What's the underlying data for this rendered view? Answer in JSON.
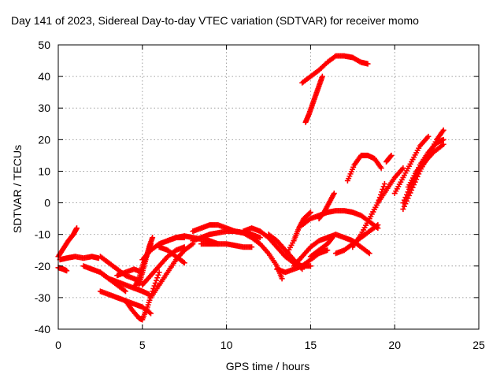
{
  "chart_data": {
    "type": "scatter",
    "title": "Day 141 of 2023, Sidereal Day-to-day VTEC variation (SDTVAR) for receiver momo",
    "xlabel": "GPS time / hours",
    "ylabel": "SDTVAR / TECUs",
    "xlim": [
      0,
      25
    ],
    "ylim": [
      -40,
      50
    ],
    "xticks": [
      0,
      5,
      10,
      15,
      20,
      25
    ],
    "yticks": [
      -40,
      -30,
      -20,
      -10,
      0,
      10,
      20,
      30,
      40,
      50
    ],
    "grid": true,
    "marker": "+",
    "color": "#ff0000",
    "series": [
      {
        "x": [
          0.0,
          0.3,
          0.6,
          0.9,
          1.1
        ],
        "y": [
          -17,
          -14.5,
          -12,
          -10,
          -8
        ]
      },
      {
        "x": [
          0.0,
          0.3,
          0.5
        ],
        "y": [
          -20.5,
          -21,
          -21.5
        ]
      },
      {
        "x": [
          0.1,
          0.5,
          1.0,
          1.5,
          2.0,
          2.4
        ],
        "y": [
          -18,
          -17.5,
          -17,
          -17.5,
          -17,
          -17.5
        ]
      },
      {
        "x": [
          1.5,
          2.0,
          2.5,
          3.0,
          3.5,
          4.0
        ],
        "y": [
          -20,
          -21,
          -22,
          -24,
          -26,
          -28
        ]
      },
      {
        "x": [
          2.5,
          3.0,
          3.5,
          4.0,
          4.5,
          5.0,
          5.5
        ],
        "y": [
          -28,
          -29,
          -30,
          -31,
          -32,
          -33,
          -35
        ]
      },
      {
        "x": [
          2.5,
          3.0,
          3.5,
          4.0,
          4.5,
          4.9
        ],
        "y": [
          -17,
          -19,
          -21,
          -23,
          -24,
          -25
        ]
      },
      {
        "x": [
          2.5,
          3.0,
          3.5,
          4.0,
          4.5,
          5.0,
          5.4
        ],
        "y": [
          -22,
          -24,
          -25,
          -26,
          -27,
          -28,
          -29
        ]
      },
      {
        "x": [
          3.5,
          4.0,
          4.5,
          5.0
        ],
        "y": [
          -23,
          -22,
          -21,
          -22
        ]
      },
      {
        "x": [
          4.0,
          4.4,
          4.8,
          5.0,
          5.3,
          5.6,
          6.0
        ],
        "y": [
          -31,
          -34,
          -36.5,
          -37,
          -33,
          -28,
          -22
        ]
      },
      {
        "x": [
          4.5,
          4.8,
          5.0,
          5.3,
          5.5
        ],
        "y": [
          -27,
          -24,
          -20,
          -16,
          -13
        ]
      },
      {
        "x": [
          4.8,
          5.0,
          5.2,
          5.4,
          5.6
        ],
        "y": [
          -26,
          -22,
          -18,
          -14,
          -11
        ]
      },
      {
        "x": [
          5.0,
          5.5,
          6.0,
          6.5,
          7.0,
          7.5
        ],
        "y": [
          -26,
          -23,
          -20,
          -17,
          -15,
          -14
        ]
      },
      {
        "x": [
          5.5,
          6.0,
          6.5,
          7.0,
          7.5,
          8.0
        ],
        "y": [
          -30,
          -26,
          -22,
          -18,
          -15,
          -13
        ]
      },
      {
        "x": [
          5.0,
          5.5,
          6.0,
          6.5,
          7.0,
          7.5
        ],
        "y": [
          -18,
          -15,
          -13,
          -12,
          -11,
          -11
        ]
      },
      {
        "x": [
          6.5,
          7.0,
          7.5,
          8.0,
          8.5,
          9.0,
          9.5
        ],
        "y": [
          -12,
          -11,
          -10.5,
          -11,
          -11.5,
          -12,
          -13
        ]
      },
      {
        "x": [
          6.0,
          6.5,
          7.0,
          7.5
        ],
        "y": [
          -14,
          -15,
          -17,
          -19
        ]
      },
      {
        "x": [
          8.0,
          8.5,
          9.0,
          9.5,
          10.0,
          10.5,
          11.0,
          11.5
        ],
        "y": [
          -9,
          -8,
          -7,
          -7,
          -8,
          -9,
          -9.5,
          -10
        ]
      },
      {
        "x": [
          8.0,
          8.5,
          9.0,
          9.5,
          10.0,
          10.5,
          11.0,
          11.5,
          12.0
        ],
        "y": [
          -12,
          -11,
          -10,
          -9.5,
          -9,
          -9,
          -9.5,
          -10,
          -11
        ]
      },
      {
        "x": [
          8.5,
          9.0,
          9.5,
          10.0,
          10.5,
          11.0,
          11.5
        ],
        "y": [
          -13,
          -13,
          -13,
          -13,
          -13.5,
          -14,
          -14
        ]
      },
      {
        "x": [
          10.5,
          11.0,
          11.5,
          12.0,
          12.5,
          13.0,
          13.3
        ],
        "y": [
          -9,
          -9.5,
          -11,
          -13,
          -16,
          -20,
          -24
        ]
      },
      {
        "x": [
          11.0,
          11.5,
          12.0,
          12.5,
          13.0,
          13.5,
          14.0,
          14.5,
          15.0
        ],
        "y": [
          -9,
          -8,
          -9,
          -11,
          -14,
          -17,
          -19,
          -20,
          -20
        ]
      },
      {
        "x": [
          12.5,
          13.0,
          13.5,
          14.0,
          14.5
        ],
        "y": [
          -10,
          -12,
          -15,
          -18,
          -21
        ]
      },
      {
        "x": [
          13.0,
          13.5,
          14.0,
          14.5,
          15.0,
          15.5,
          16.0
        ],
        "y": [
          -21,
          -22,
          -21,
          -20,
          -18,
          -16,
          -15
        ]
      },
      {
        "x": [
          13.5,
          14.0,
          14.3,
          14.6,
          15.0
        ],
        "y": [
          -17,
          -12,
          -8,
          -5,
          -3
        ]
      },
      {
        "x": [
          14.0,
          14.5,
          15.0,
          15.5,
          16.0,
          16.5,
          17.0,
          17.5,
          18.0,
          18.5
        ],
        "y": [
          -20,
          -17,
          -14,
          -12,
          -11,
          -10,
          -11,
          -12,
          -14,
          -16
        ]
      },
      {
        "x": [
          14.5,
          15.0,
          15.5,
          16.0,
          16.5,
          17.0,
          17.5,
          18.0,
          18.5,
          19.0
        ],
        "y": [
          -7,
          -5,
          -4,
          -3,
          -2.5,
          -2.5,
          -3,
          -4,
          -6,
          -8
        ]
      },
      {
        "x": [
          15.0,
          15.5,
          16.0,
          16.3
        ],
        "y": [
          -17,
          -15,
          -13,
          -11
        ]
      },
      {
        "x": [
          15.5,
          15.8,
          16.1,
          16.4
        ],
        "y": [
          -5,
          -3,
          0,
          3
        ]
      },
      {
        "x": [
          14.7,
          14.9,
          15.1,
          15.3,
          15.5,
          15.7
        ],
        "y": [
          25.5,
          28,
          31,
          34,
          37,
          40
        ]
      },
      {
        "x": [
          14.5,
          15.0,
          15.5,
          16.0,
          16.5,
          17.0,
          17.5,
          18.0,
          18.4
        ],
        "y": [
          38,
          40,
          42,
          44.5,
          46.5,
          46.5,
          46,
          44.5,
          44
        ]
      },
      {
        "x": [
          16.5,
          17.0,
          17.5,
          18.0,
          18.5,
          19.0
        ],
        "y": [
          -16,
          -15,
          -13,
          -11,
          -9,
          -7
        ]
      },
      {
        "x": [
          17.2,
          17.6,
          18.0,
          18.4,
          18.8,
          19.2
        ],
        "y": [
          7,
          12,
          15,
          15,
          14,
          11
        ]
      },
      {
        "x": [
          17.5,
          18.0,
          18.5,
          19.0,
          19.4
        ],
        "y": [
          -14,
          -10,
          -5,
          0,
          6
        ]
      },
      {
        "x": [
          18.5,
          19.0,
          19.5,
          20.0,
          20.5
        ],
        "y": [
          -5,
          0,
          4,
          8,
          11
        ]
      },
      {
        "x": [
          19.5,
          19.8
        ],
        "y": [
          13,
          15
        ]
      },
      {
        "x": [
          20.0,
          20.5,
          21.0,
          21.5,
          22.0
        ],
        "y": [
          3,
          8,
          13,
          18,
          21
        ]
      },
      {
        "x": [
          20.5,
          21.0,
          21.5,
          22.0,
          22.5,
          22.9
        ],
        "y": [
          -2,
          4,
          10,
          15,
          20,
          23
        ]
      },
      {
        "x": [
          20.5,
          21.0,
          21.5,
          22.0,
          22.5,
          22.9
        ],
        "y": [
          0,
          6,
          12,
          16,
          19,
          20
        ]
      },
      {
        "x": [
          20.8,
          21.3,
          21.8,
          22.3,
          22.9
        ],
        "y": [
          5,
          10,
          13,
          16,
          18.5
        ]
      },
      {
        "x": [
          21.5,
          21.8,
          22.0
        ],
        "y": [
          11,
          13,
          15
        ]
      }
    ]
  }
}
